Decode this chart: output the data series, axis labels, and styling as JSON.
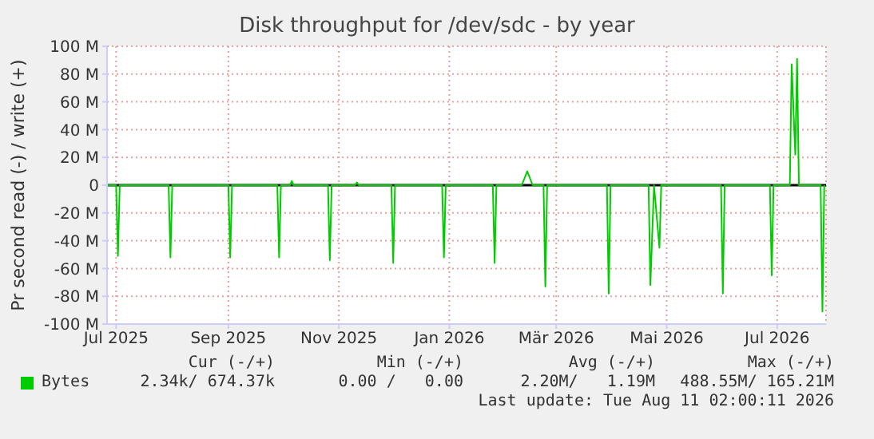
{
  "chart_data": {
    "type": "line",
    "title": "Disk throughput for /dev/sdc - by year",
    "ylabel": "Pr second read (-) / write (+)",
    "x": [
      "2025-06-26",
      "2025-07-01",
      "2025-07-02",
      "2025-07-03",
      "2025-07-30",
      "2025-07-31",
      "2025-08-01",
      "2025-09-01",
      "2025-09-02",
      "2025-09-03",
      "2025-09-28",
      "2025-09-29",
      "2025-09-30",
      "2025-10-05",
      "2025-10-06",
      "2025-10-07",
      "2025-10-26",
      "2025-10-27",
      "2025-10-28",
      "2025-11-10",
      "2025-11-11",
      "2025-11-12",
      "2025-11-30",
      "2025-12-01",
      "2025-12-02",
      "2025-12-28",
      "2025-12-29",
      "2025-12-30",
      "2026-01-25",
      "2026-01-26",
      "2026-01-27",
      "2026-02-10",
      "2026-02-13",
      "2026-02-16",
      "2026-02-22",
      "2026-02-23",
      "2026-02-24",
      "2026-03-29",
      "2026-03-30",
      "2026-03-31",
      "2026-04-21",
      "2026-04-22",
      "2026-04-24",
      "2026-04-27",
      "2026-04-28",
      "2026-05-31",
      "2026-06-01",
      "2026-06-02",
      "2026-06-27",
      "2026-06-28",
      "2026-06-29",
      "2026-07-08",
      "2026-07-09",
      "2026-07-11",
      "2026-07-12",
      "2026-07-13",
      "2026-07-25",
      "2026-07-26",
      "2026-07-27"
    ],
    "series": [
      {
        "name": "Bytes",
        "color": "#00cc00",
        "values": [
          0,
          0,
          -51,
          0,
          0,
          -52,
          0,
          0,
          -52,
          0,
          0,
          -52,
          0,
          0,
          3,
          0,
          0,
          -54,
          0,
          0,
          2,
          0,
          0,
          -56,
          0,
          0,
          -52,
          0,
          0,
          -56,
          0,
          0,
          10,
          0,
          0,
          -73,
          0,
          0,
          -78,
          0,
          0,
          -72,
          0,
          -45,
          0,
          0,
          -78,
          0,
          0,
          -65,
          0,
          0,
          87,
          22,
          91,
          0,
          0,
          -91,
          0
        ]
      }
    ],
    "xlim": [
      "2025-06-26",
      "2026-07-28"
    ],
    "xticks": [
      {
        "value": "2025-07-01",
        "label": "Jul 2025"
      },
      {
        "value": "2025-09-01",
        "label": "Sep 2025"
      },
      {
        "value": "2025-11-01",
        "label": "Nov 2025"
      },
      {
        "value": "2026-01-01",
        "label": "Jan 2026"
      },
      {
        "value": "2026-03-01",
        "label": "Mär 2026"
      },
      {
        "value": "2026-05-01",
        "label": "Mai 2026"
      },
      {
        "value": "2026-07-01",
        "label": "Jul 2026"
      }
    ],
    "ylim": [
      -100,
      100
    ],
    "yticks": [
      {
        "value": -100,
        "label": "-100 M"
      },
      {
        "value": -80,
        "label": "-80 M"
      },
      {
        "value": -60,
        "label": "-60 M"
      },
      {
        "value": -40,
        "label": "-40 M"
      },
      {
        "value": -20,
        "label": "-20 M"
      },
      {
        "value": 0,
        "label": "0"
      },
      {
        "value": 20,
        "label": "20 M"
      },
      {
        "value": 40,
        "label": "40 M"
      },
      {
        "value": 60,
        "label": "60 M"
      },
      {
        "value": 80,
        "label": "80 M"
      },
      {
        "value": 100,
        "label": "100 M"
      }
    ],
    "ref_lines": [
      {
        "axis": "y",
        "value": 0,
        "color": "#000000"
      }
    ],
    "grid": true,
    "legend": "bottom",
    "marker": "none",
    "line_style": "solid",
    "annotations": [
      "Cur (-/+)",
      "Min (-/+)",
      "Avg (-/+)",
      "Max (-/+)",
      "2.34k/ 674.37k",
      "0.00 /   0.00",
      "2.20M/   1.19M",
      "488.55M/ 165.21M",
      "Last update: Tue Aug 11 02:00:11 2026"
    ]
  }
}
